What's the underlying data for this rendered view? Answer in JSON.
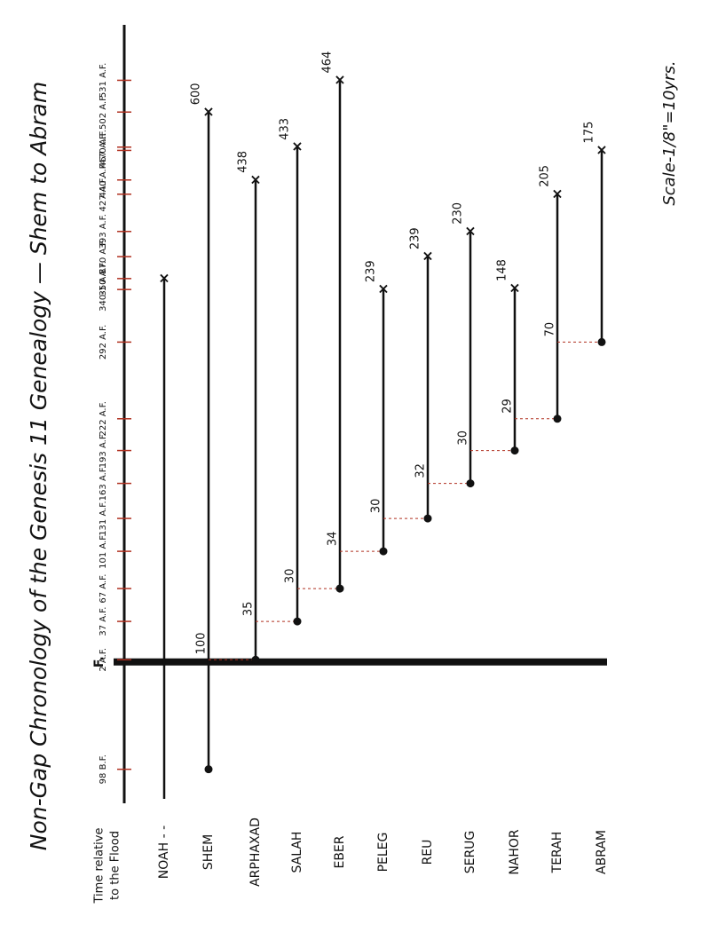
{
  "chart_data": {
    "type": "timeline",
    "title": "Non-Gap Chronology of the Genesis 11 Genealogy — Shem to Abram",
    "note": "Scale-1/8\"=10yrs.",
    "axis_label": [
      "Time relative",
      "to the Flood"
    ],
    "ylim": [
      -125,
      580
    ],
    "yticks": [
      {
        "value": -98,
        "label": "98 B.F."
      },
      {
        "value": 0,
        "label": "F."
      },
      {
        "value": 2,
        "label": "2 A.F."
      },
      {
        "value": 37,
        "label": "37 A.F."
      },
      {
        "value": 67,
        "label": "67 A.F."
      },
      {
        "value": 101,
        "label": "101 A.F."
      },
      {
        "value": 131,
        "label": "131 A.F."
      },
      {
        "value": 163,
        "label": "163 A.F."
      },
      {
        "value": 193,
        "label": "193 A.F."
      },
      {
        "value": 222,
        "label": "222 A.F."
      },
      {
        "value": 292,
        "label": "292 A.F."
      },
      {
        "value": 340,
        "label": "340-1 A.F."
      },
      {
        "value": 350,
        "label": "350 A.F."
      },
      {
        "value": 370,
        "label": "370 A.F."
      },
      {
        "value": 393,
        "label": "393 A.F."
      },
      {
        "value": 427,
        "label": "427 A.F."
      },
      {
        "value": 440,
        "label": "440 A.F."
      },
      {
        "value": 467,
        "label": "467 A.F."
      },
      {
        "value": 470,
        "label": "470 A.F."
      },
      {
        "value": 502,
        "label": "502 A.F."
      },
      {
        "value": 531,
        "label": "531 A.F."
      }
    ],
    "series": [
      {
        "name": "NOAH - -",
        "birth": null,
        "death": 350,
        "lifespan": null,
        "son_age": null
      },
      {
        "name": "SHEM",
        "birth": -98,
        "death": 502,
        "lifespan": 600,
        "son_age": 100
      },
      {
        "name": "ARPHAXAD",
        "birth": 2,
        "death": 440,
        "lifespan": 438,
        "son_age": 35
      },
      {
        "name": "SALAH",
        "birth": 37,
        "death": 470,
        "lifespan": 433,
        "son_age": 30
      },
      {
        "name": "EBER",
        "birth": 67,
        "death": 531,
        "lifespan": 464,
        "son_age": 34
      },
      {
        "name": "PELEG",
        "birth": 101,
        "death": 340,
        "lifespan": 239,
        "son_age": 30
      },
      {
        "name": "REU",
        "birth": 131,
        "death": 370,
        "lifespan": 239,
        "son_age": 32
      },
      {
        "name": "SERUG",
        "birth": 163,
        "death": 393,
        "lifespan": 230,
        "son_age": 30
      },
      {
        "name": "NAHOR",
        "birth": 193,
        "death": 341,
        "lifespan": 148,
        "son_age": 29
      },
      {
        "name": "TERAH",
        "birth": 222,
        "death": 427,
        "lifespan": 205,
        "son_age": 70
      },
      {
        "name": "ABRAM",
        "birth": 292,
        "death": 467,
        "lifespan": 175,
        "son_age": null
      }
    ]
  }
}
